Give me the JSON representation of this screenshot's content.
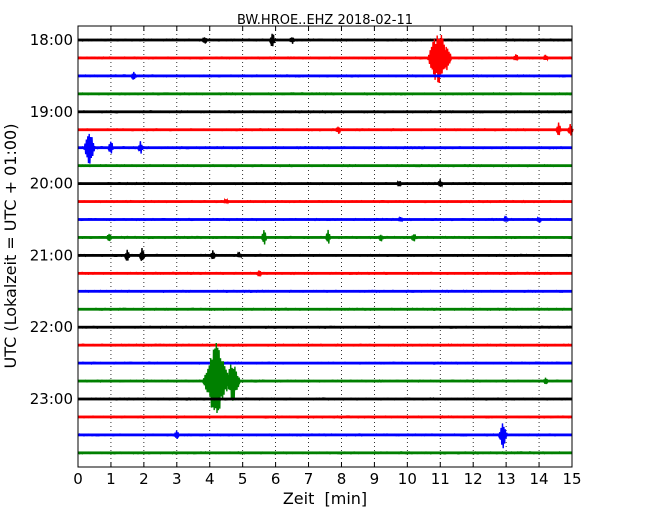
{
  "chart_data": {
    "type": "line",
    "title": "BW.HROE..EHZ 2018-02-11",
    "xlabel": "Zeit  [min]",
    "ylabel": "UTC (Lokalzeit = UTC + 01:00)",
    "xlim": [
      0,
      15
    ],
    "x_ticks": [
      "0",
      "1",
      "2",
      "3",
      "4",
      "5",
      "6",
      "7",
      "8",
      "9",
      "10",
      "11",
      "12",
      "13",
      "14",
      "15"
    ],
    "y_ticks": [
      "18:00",
      "19:00",
      "20:00",
      "21:00",
      "22:00",
      "23:00"
    ],
    "grid": "vertical dotted",
    "color_cycle": [
      "#000000",
      "#ff0000",
      "#0000ff",
      "#008000"
    ],
    "series": [
      {
        "start": "18:00",
        "events": [
          {
            "t": 3.85,
            "amp": 0.3
          },
          {
            "t": 5.9,
            "amp": 0.7
          },
          {
            "t": 6.5,
            "amp": 0.3
          }
        ]
      },
      {
        "start": "18:15",
        "events": [
          {
            "t": 10.95,
            "amp": 3.2
          },
          {
            "t": 11.2,
            "amp": 1.4
          },
          {
            "t": 13.3,
            "amp": 0.3
          },
          {
            "t": 14.2,
            "amp": 0.2
          }
        ]
      },
      {
        "start": "18:30",
        "events": [
          {
            "t": 1.7,
            "amp": 0.4
          }
        ]
      },
      {
        "start": "18:45",
        "events": []
      },
      {
        "start": "19:00",
        "events": []
      },
      {
        "start": "19:15",
        "events": [
          {
            "t": 7.9,
            "amp": 0.3
          },
          {
            "t": 14.6,
            "amp": 0.6
          },
          {
            "t": 14.95,
            "amp": 0.5
          }
        ]
      },
      {
        "start": "19:30",
        "events": [
          {
            "t": 0.35,
            "amp": 1.7
          },
          {
            "t": 1.0,
            "amp": 0.6
          },
          {
            "t": 1.9,
            "amp": 0.6
          }
        ]
      },
      {
        "start": "19:45",
        "events": []
      },
      {
        "start": "20:00",
        "events": [
          {
            "t": 9.75,
            "amp": 0.2
          },
          {
            "t": 11.0,
            "amp": 0.3
          }
        ]
      },
      {
        "start": "20:15",
        "events": [
          {
            "t": 4.5,
            "amp": 0.15
          }
        ]
      },
      {
        "start": "20:30",
        "events": [
          {
            "t": 9.8,
            "amp": 0.2
          },
          {
            "t": 13.0,
            "amp": 0.2
          },
          {
            "t": 14.0,
            "amp": 0.2
          }
        ]
      },
      {
        "start": "20:45",
        "events": [
          {
            "t": 0.95,
            "amp": 0.4
          },
          {
            "t": 5.65,
            "amp": 0.7
          },
          {
            "t": 7.6,
            "amp": 0.7
          },
          {
            "t": 9.2,
            "amp": 0.3
          },
          {
            "t": 10.2,
            "amp": 0.4
          }
        ]
      },
      {
        "start": "21:00",
        "events": [
          {
            "t": 1.5,
            "amp": 0.6
          },
          {
            "t": 1.95,
            "amp": 0.6
          },
          {
            "t": 4.1,
            "amp": 0.35
          },
          {
            "t": 4.9,
            "amp": 0.2
          }
        ]
      },
      {
        "start": "21:15",
        "events": [
          {
            "t": 5.5,
            "amp": 0.3
          }
        ]
      },
      {
        "start": "21:30",
        "events": []
      },
      {
        "start": "21:45",
        "events": []
      },
      {
        "start": "22:00",
        "events": []
      },
      {
        "start": "22:15",
        "events": []
      },
      {
        "start": "22:30",
        "events": []
      },
      {
        "start": "22:45",
        "events": [
          {
            "t": 4.2,
            "amp": 4.0
          },
          {
            "t": 4.7,
            "amp": 2.2
          },
          {
            "t": 14.2,
            "amp": 0.2
          }
        ]
      },
      {
        "start": "23:00",
        "events": []
      },
      {
        "start": "23:15",
        "events": []
      },
      {
        "start": "23:30",
        "events": [
          {
            "t": 3.0,
            "amp": 0.3
          },
          {
            "t": 12.9,
            "amp": 1.3
          }
        ]
      },
      {
        "start": "23:45",
        "events": []
      }
    ]
  }
}
